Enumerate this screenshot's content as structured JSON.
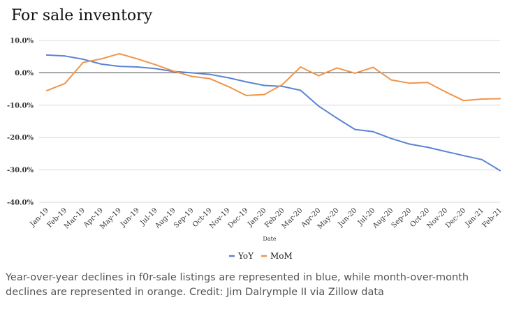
{
  "chart_data": {
    "type": "line",
    "title": "For sale inventory",
    "xlabel": "Date",
    "ylabel": "",
    "ylim": [
      -40,
      10
    ],
    "yticks": [
      10,
      0,
      -10,
      -20,
      -30,
      -40
    ],
    "ytick_labels": [
      "10.0%",
      "0.0%",
      "-10.0%",
      "-20.0%",
      "-30.0%",
      "-40.0%"
    ],
    "grid": true,
    "legend": "bottom",
    "categories": [
      "Jan-19",
      "Feb-19",
      "Mar-19",
      "Apr-19",
      "May-19",
      "Jun-19",
      "Jul-19",
      "Aug-19",
      "Sep-19",
      "Oct-19",
      "Nov-19",
      "Dec-19",
      "Jan-20",
      "Feb-20",
      "Mar-20",
      "Apr-20",
      "May-20",
      "Jun-20",
      "Jul-20",
      "Aug-20",
      "Sep-20",
      "Oct-20",
      "Nov-20",
      "Dec-20",
      "Jan-21",
      "Feb-21"
    ],
    "series": [
      {
        "name": "YoY",
        "color": "#5b84d4",
        "values": [
          5.5,
          5.2,
          4.2,
          2.7,
          2.0,
          1.8,
          1.3,
          0.4,
          0.0,
          -0.5,
          -1.5,
          -2.8,
          -3.9,
          -4.2,
          -5.4,
          -10.3,
          -14.0,
          -17.5,
          -18.2,
          -20.3,
          -22.0,
          -23.0,
          -24.3,
          -25.6,
          -26.8,
          -30.2
        ]
      },
      {
        "name": "MoM",
        "color": "#f0954a",
        "values": [
          -5.5,
          -3.3,
          3.2,
          4.3,
          5.9,
          4.3,
          2.5,
          0.5,
          -1.1,
          -1.8,
          -4.2,
          -7.0,
          -6.7,
          -3.6,
          1.8,
          -0.9,
          1.5,
          -0.1,
          1.7,
          -2.2,
          -3.2,
          -3.0,
          -5.9,
          -8.6,
          -8.1,
          -8.0
        ]
      }
    ]
  },
  "caption": "Year-over-year declines in f0r-sale listings are represented in blue, while month-over-month declines are represented in orange. Credit: Jim Dalrymple II via Zillow data"
}
